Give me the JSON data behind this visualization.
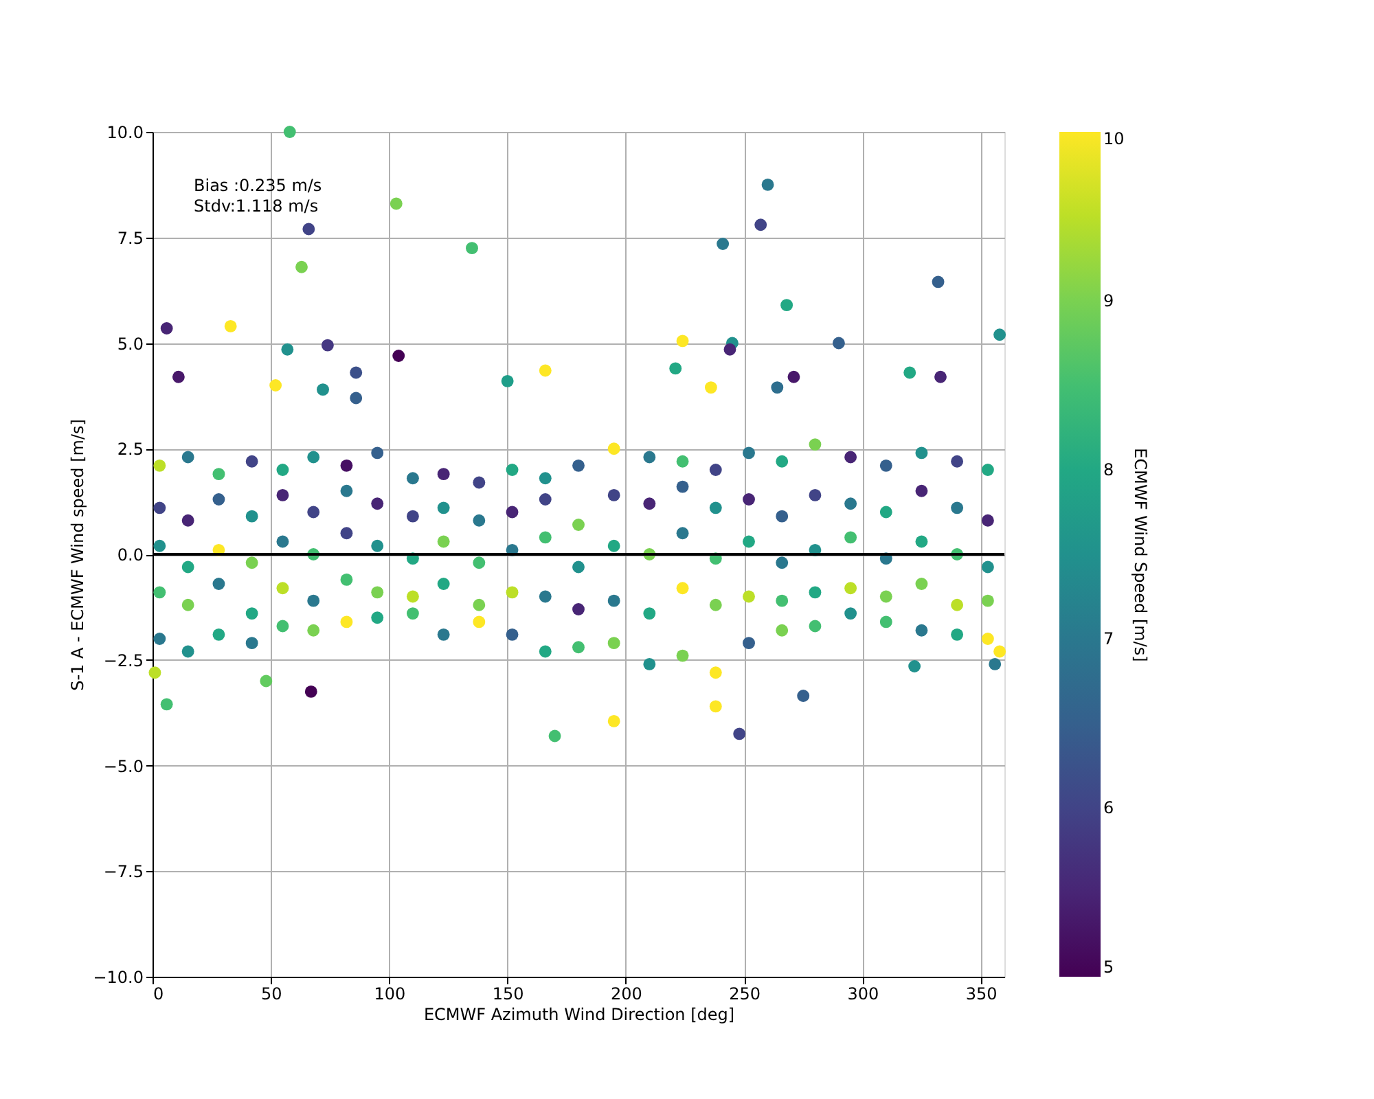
{
  "chart_data": {
    "type": "scatter",
    "xlabel": "ECMWF Azimuth Wind Direction [deg]",
    "ylabel": "S-1 A - ECMWF Wind speed [m/s]",
    "clabel": "ECMWF Wind Speed [m/s]",
    "annotations": [
      "Bias :0.235 m/s",
      "Stdv:1.118 m/s"
    ],
    "xlim": [
      0,
      360
    ],
    "xticks": [
      0,
      50,
      100,
      150,
      200,
      250,
      300,
      350
    ],
    "ylim": [
      -10,
      10
    ],
    "yticks": [
      {
        "value": -10,
        "label": "−10.0"
      },
      {
        "value": -7.5,
        "label": "−7.5"
      },
      {
        "value": -5,
        "label": "−5.0"
      },
      {
        "value": -2.5,
        "label": "−2.5"
      },
      {
        "value": 0,
        "label": "0.0"
      },
      {
        "value": 2.5,
        "label": "2.5"
      },
      {
        "value": 5,
        "label": "5.0"
      },
      {
        "value": 7.5,
        "label": "7.5"
      },
      {
        "value": 10,
        "label": "10.0"
      }
    ],
    "clim": [
      5,
      10
    ],
    "cticks": [
      5,
      6,
      7,
      8,
      9,
      10
    ],
    "grid": true,
    "marker": "circle",
    "ref_lines": [
      {
        "axis": "y",
        "value": 0,
        "color": "#000000"
      }
    ],
    "x": [
      3,
      3,
      3,
      3,
      3,
      15,
      15,
      15,
      15,
      15,
      28,
      28,
      28,
      28,
      28,
      42,
      42,
      42,
      42,
      42,
      55,
      55,
      55,
      55,
      55,
      68,
      68,
      68,
      68,
      68,
      82,
      82,
      82,
      82,
      82,
      95,
      95,
      95,
      95,
      95,
      110,
      110,
      110,
      110,
      110,
      123,
      123,
      123,
      123,
      123,
      138,
      138,
      138,
      138,
      138,
      152,
      152,
      152,
      152,
      152,
      166,
      166,
      166,
      166,
      166,
      180,
      180,
      180,
      180,
      180,
      195,
      195,
      195,
      195,
      195,
      210,
      210,
      210,
      210,
      210,
      224,
      224,
      224,
      224,
      224,
      238,
      238,
      238,
      238,
      238,
      252,
      252,
      252,
      252,
      252,
      266,
      266,
      266,
      266,
      266,
      280,
      280,
      280,
      280,
      280,
      295,
      295,
      295,
      295,
      295,
      310,
      310,
      310,
      310,
      310,
      325,
      325,
      325,
      325,
      325,
      340,
      340,
      340,
      340,
      340,
      353,
      353,
      353,
      353,
      353,
      58,
      103,
      66,
      63,
      135,
      6,
      33,
      57,
      74,
      104,
      11,
      86,
      86,
      52,
      72,
      150,
      166,
      260,
      257,
      241,
      332,
      268,
      245,
      244,
      224,
      290,
      358,
      221,
      320,
      333,
      271,
      236,
      264,
      6,
      67,
      48,
      1,
      170,
      195,
      248,
      238,
      275,
      322,
      358,
      356
    ],
    "values": [
      2.1,
      1.1,
      0.2,
      -0.9,
      -2.0,
      2.3,
      0.8,
      -0.3,
      -1.2,
      -2.3,
      1.9,
      1.3,
      0.1,
      -0.7,
      -1.9,
      2.2,
      0.9,
      -0.2,
      -1.4,
      -2.1,
      2.0,
      1.4,
      0.3,
      -0.8,
      -1.7,
      2.3,
      1.0,
      0.0,
      -1.1,
      -1.8,
      2.1,
      1.5,
      0.5,
      -0.6,
      -1.6,
      2.4,
      1.2,
      0.2,
      -0.9,
      -1.5,
      1.8,
      0.9,
      -0.1,
      -1.0,
      -1.4,
      1.9,
      1.1,
      0.3,
      -0.7,
      -1.9,
      1.7,
      0.8,
      -0.2,
      -1.2,
      -1.6,
      2.0,
      1.0,
      0.1,
      -0.9,
      -1.9,
      1.8,
      1.3,
      0.4,
      -1.0,
      -2.3,
      2.1,
      0.7,
      -0.3,
      -1.3,
      -2.2,
      2.5,
      1.4,
      0.2,
      -1.1,
      -2.1,
      2.3,
      1.2,
      0.0,
      -1.4,
      -2.6,
      2.2,
      1.6,
      0.5,
      -0.8,
      -2.4,
      2.0,
      1.1,
      -0.1,
      -1.2,
      -2.8,
      2.4,
      1.3,
      0.3,
      -1.0,
      -2.1,
      2.2,
      0.9,
      -0.2,
      -1.1,
      -1.8,
      2.6,
      1.4,
      0.1,
      -0.9,
      -1.7,
      2.3,
      1.2,
      0.4,
      -0.8,
      -1.4,
      2.1,
      1.0,
      -0.1,
      -1.0,
      -1.6,
      2.4,
      1.5,
      0.3,
      -0.7,
      -1.8,
      2.2,
      1.1,
      0.0,
      -1.2,
      -1.9,
      2.0,
      0.8,
      -0.3,
      -1.1,
      -2.0,
      10.0,
      8.3,
      7.7,
      6.8,
      7.25,
      5.35,
      5.4,
      4.85,
      4.95,
      4.7,
      4.2,
      4.3,
      3.7,
      4.0,
      3.9,
      4.1,
      4.35,
      8.75,
      7.8,
      7.35,
      6.45,
      5.9,
      5.0,
      4.85,
      5.05,
      5.0,
      5.2,
      4.4,
      4.3,
      4.2,
      4.2,
      3.95,
      3.95,
      -3.55,
      -3.25,
      -3.0,
      -2.8,
      -4.3,
      -3.95,
      -4.25,
      -3.6,
      -3.35,
      -2.65,
      -2.3,
      -2.6
    ],
    "cvalues": [
      9.5,
      6,
      7.5,
      8.5,
      7,
      7,
      5.5,
      8,
      9,
      7.5,
      8.5,
      6.5,
      10,
      7,
      8,
      6,
      7.5,
      9,
      8,
      7,
      8,
      5.5,
      7,
      9.5,
      8.5,
      7.5,
      6,
      8.5,
      7,
      9,
      5.2,
      7,
      6,
      8.5,
      10,
      6.5,
      5.5,
      7.5,
      9,
      8,
      7,
      6,
      8,
      9.5,
      8.5,
      5.5,
      7.5,
      9,
      8,
      7,
      6,
      7,
      8.5,
      9,
      10,
      8,
      5.5,
      7,
      9.5,
      6.5,
      7.5,
      6,
      8.5,
      7,
      8,
      6.5,
      9,
      7.5,
      5.5,
      8.5,
      10,
      6,
      8,
      7,
      9,
      7,
      5.5,
      9,
      8,
      7.5,
      8.5,
      6.5,
      7,
      10,
      9,
      6,
      7.5,
      8.5,
      9,
      10,
      7,
      5.5,
      8,
      9.5,
      6.5,
      8,
      6.5,
      7,
      8.5,
      9,
      9,
      6,
      7.5,
      8,
      8.5,
      5.5,
      7,
      8.5,
      9.5,
      7.5,
      6.5,
      8,
      7,
      9,
      8.5,
      7.5,
      5.5,
      8,
      9,
      7,
      6,
      7,
      8.5,
      9.5,
      8,
      8,
      5.5,
      7.5,
      9,
      10,
      8.5,
      9,
      6,
      9,
      8.5,
      5.5,
      10,
      7.5,
      5.8,
      5,
      5.3,
      6.2,
      6.5,
      10,
      7.5,
      7.8,
      10,
      7,
      6,
      7,
      6.5,
      8,
      7.5,
      5.5,
      10,
      6.5,
      7.5,
      8,
      8,
      5.5,
      5.3,
      10,
      6.8,
      8.5,
      5,
      8.8,
      9.5,
      8.5,
      10,
      6,
      10,
      6.5,
      7.5,
      10,
      7
    ]
  }
}
